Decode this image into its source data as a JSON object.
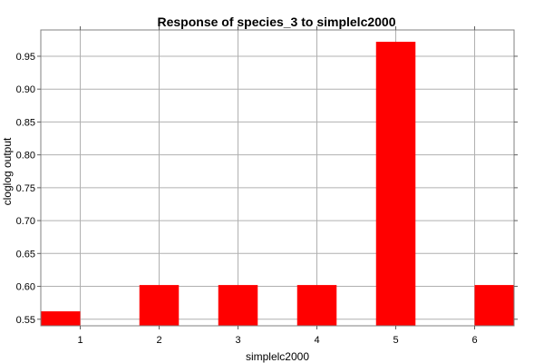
{
  "chart_data": {
    "type": "bar",
    "title": "Response of species_3 to simplelc2000",
    "xlabel": "simplelc2000",
    "ylabel": "cloglog output",
    "categories": [
      "1",
      "2",
      "3",
      "4",
      "5",
      "6"
    ],
    "values": [
      0.562,
      0.602,
      0.602,
      0.602,
      0.972,
      0.602
    ],
    "ylim": [
      0.54,
      0.99
    ],
    "yticks": [
      "0.55",
      "0.60",
      "0.65",
      "0.70",
      "0.75",
      "0.80",
      "0.85",
      "0.90",
      "0.95"
    ],
    "bar_color": "#ff0000",
    "grid": true,
    "legend": "none"
  }
}
